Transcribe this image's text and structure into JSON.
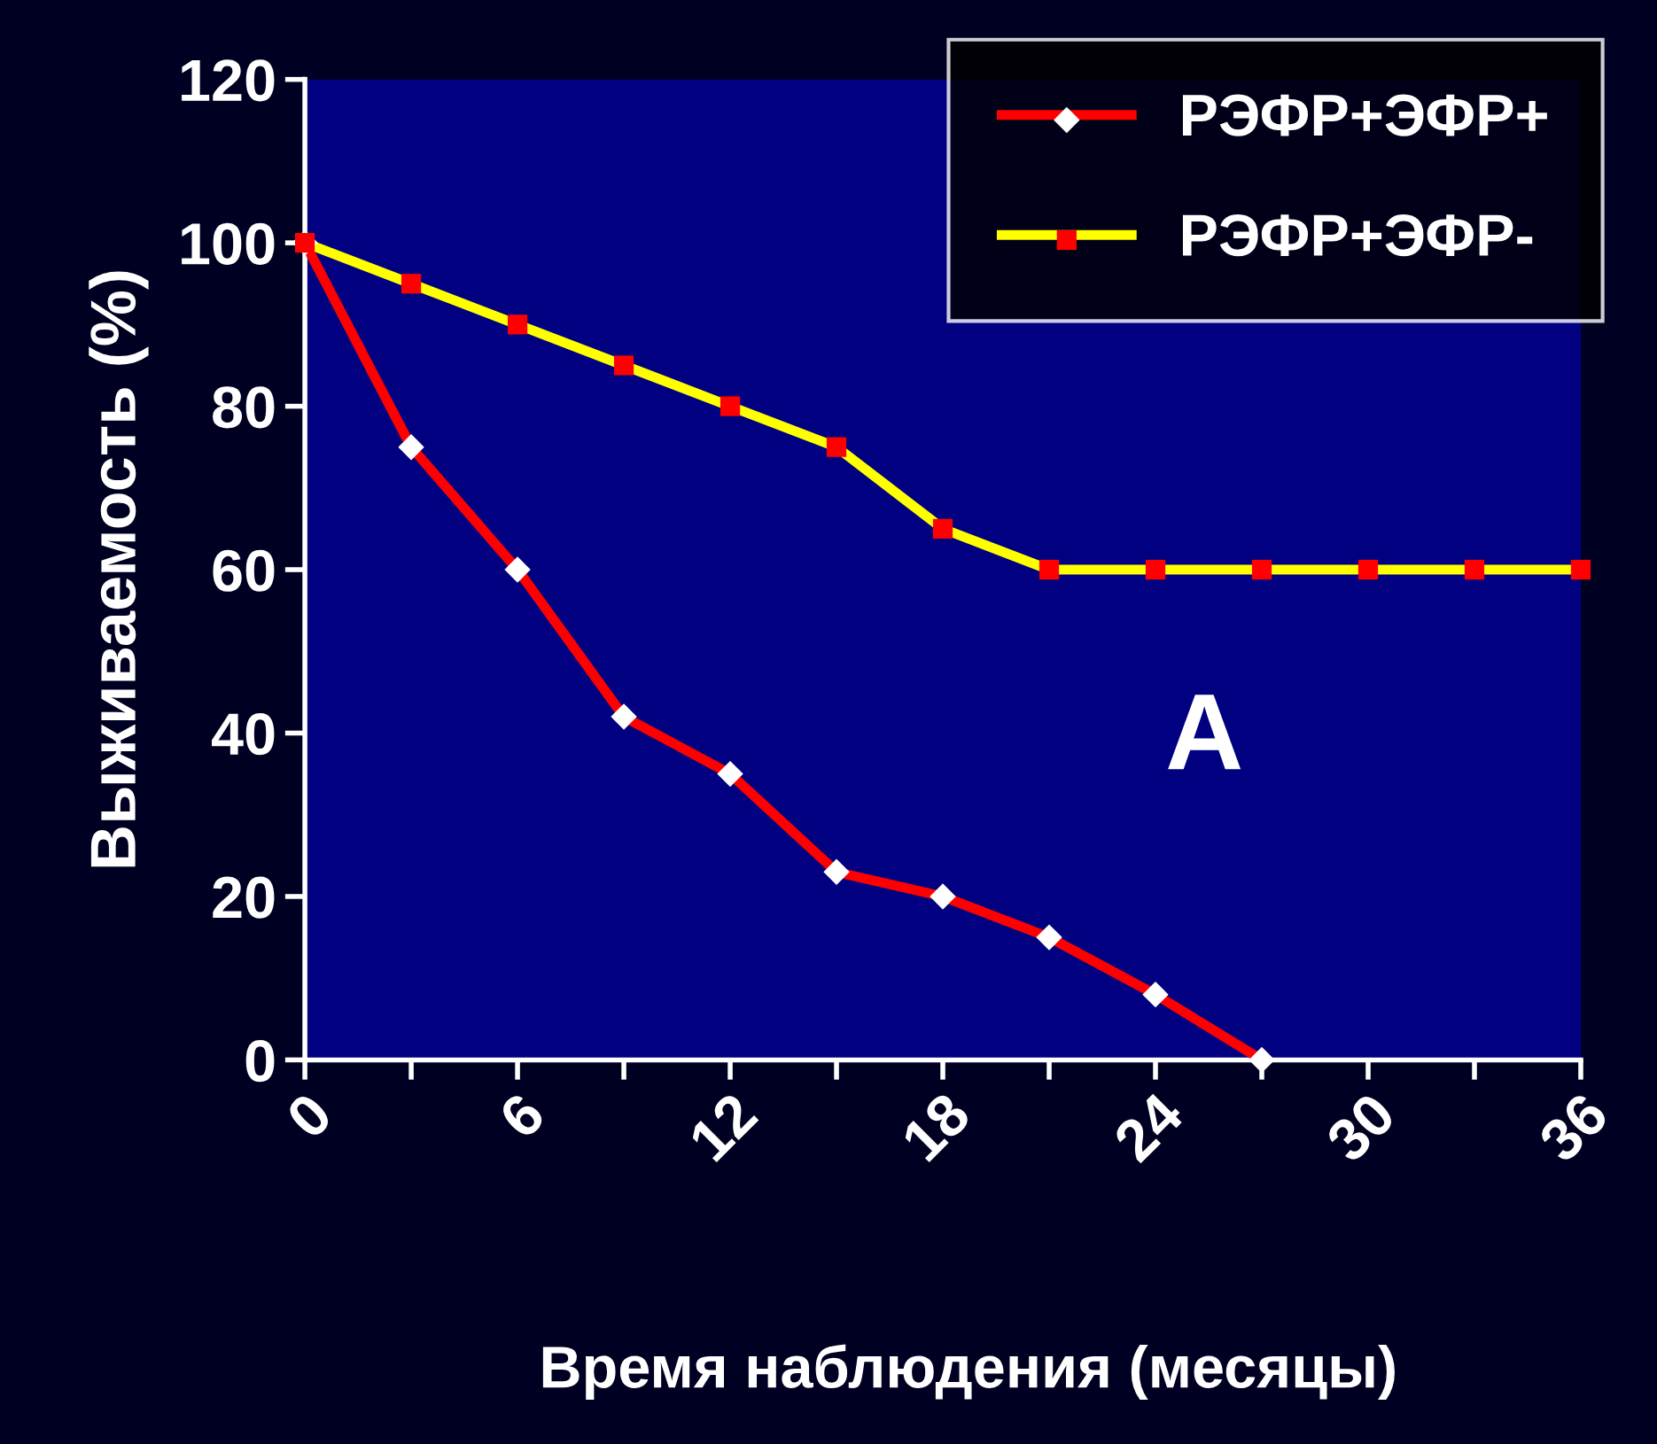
{
  "chart_data": {
    "type": "line",
    "xlabel": "Время наблюдения (месяцы)",
    "ylabel": "Выживаемость (%)",
    "x": [
      0,
      3,
      6,
      9,
      12,
      15,
      18,
      21,
      24,
      27,
      30,
      33,
      36
    ],
    "series": [
      {
        "name": "РЭФР+ЭФР+",
        "color": "#ff0000",
        "marker": "diamond",
        "colors": [
          "#ffffff",
          "#ffffff",
          "#ffffff",
          "#ffffff",
          "#ffffff",
          "#ffffff",
          "#ffffff",
          "#ffffff",
          "#ffffff",
          "#ffffff",
          "#ffffff",
          "#ffffff",
          "#ffffff"
        ],
        "values": [
          100,
          75,
          60,
          42,
          35,
          23,
          20,
          15,
          8,
          0,
          null,
          null,
          null
        ]
      },
      {
        "name": "РЭФР+ЭФР-",
        "color": "#ffff00",
        "marker": "square",
        "colors": [
          "#ff0000",
          "#ff0000",
          "#ff0000",
          "#ff0000",
          "#ff0000",
          "#ff0000",
          "#ff0000",
          "#ff0000",
          "#ff0000",
          "#ff0000",
          "#ff0000",
          "#ff0000",
          "#ff0000"
        ],
        "values": [
          100,
          95,
          90,
          85,
          80,
          75,
          65,
          60,
          60,
          60,
          60,
          60,
          60
        ]
      }
    ],
    "xlim": [
      0,
      36
    ],
    "ylim": [
      0,
      120
    ],
    "xticks": [
      0,
      {
        "value": 3,
        "label": null
      },
      6,
      {
        "value": 9,
        "label": null
      },
      12,
      {
        "value": 15,
        "label": null
      },
      18,
      {
        "value": 21,
        "label": null
      },
      24,
      {
        "value": 27,
        "label": null
      },
      30,
      {
        "value": 33,
        "label": null
      },
      36
    ],
    "yticks": [
      0,
      20,
      40,
      60,
      80,
      100,
      120
    ],
    "annotations": [
      "A"
    ],
    "grid": false,
    "legend": "top right",
    "line_style": "solid"
  }
}
